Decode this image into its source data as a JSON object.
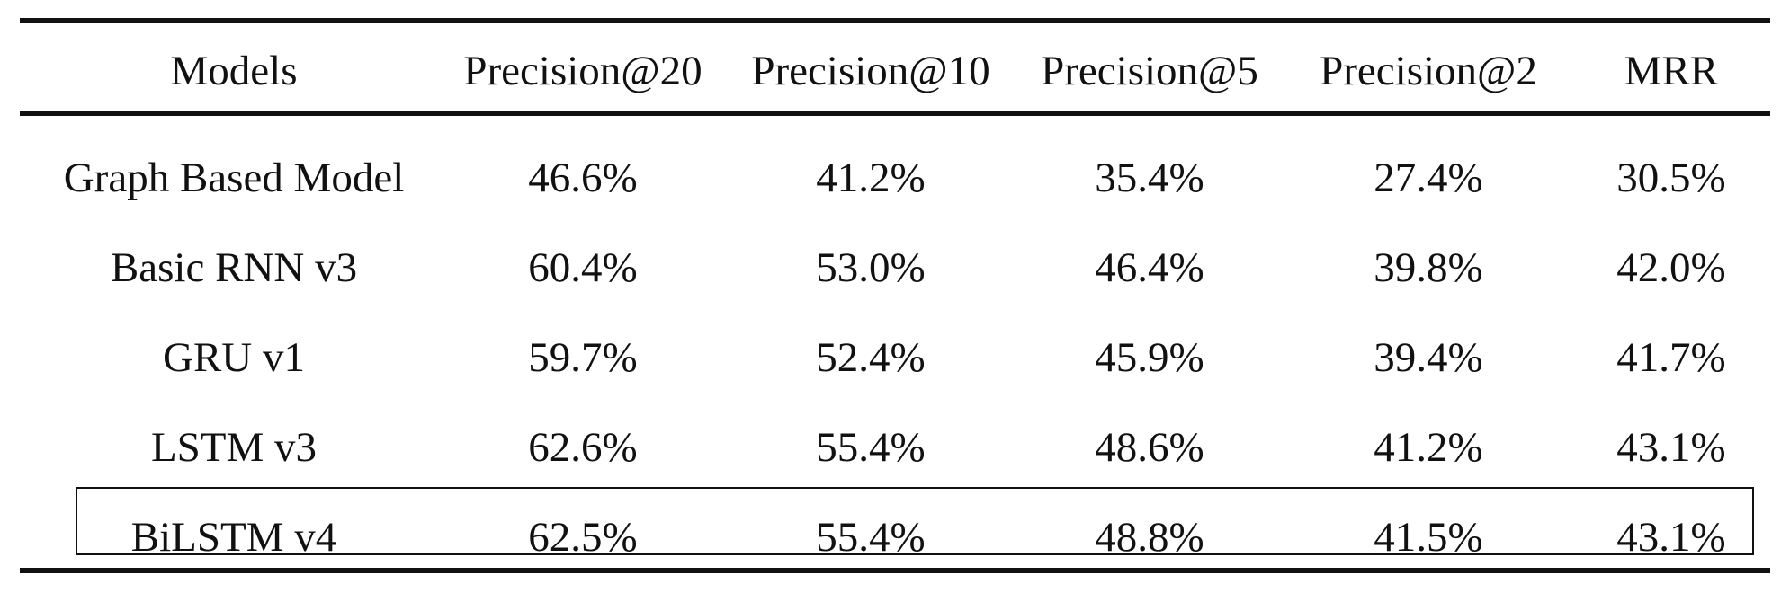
{
  "table": {
    "headers": [
      "Models",
      "Precision@20",
      "Precision@10",
      "Precision@5",
      "Precision@2",
      "MRR"
    ],
    "rows": [
      [
        "Graph Based Model",
        "46.6%",
        "41.2%",
        "35.4%",
        "27.4%",
        "30.5%"
      ],
      [
        "Basic RNN v3",
        "60.4%",
        "53.0%",
        "46.4%",
        "39.8%",
        "42.0%"
      ],
      [
        "GRU v1",
        "59.7%",
        "52.4%",
        "45.9%",
        "39.4%",
        "41.7%"
      ],
      [
        "LSTM v3",
        "62.6%",
        "55.4%",
        "48.6%",
        "41.2%",
        "43.1%"
      ],
      [
        "BiLSTM v4",
        "62.5%",
        "55.4%",
        "48.8%",
        "41.5%",
        "43.1%"
      ]
    ],
    "highlighted_row": "BiLSTM v4"
  }
}
